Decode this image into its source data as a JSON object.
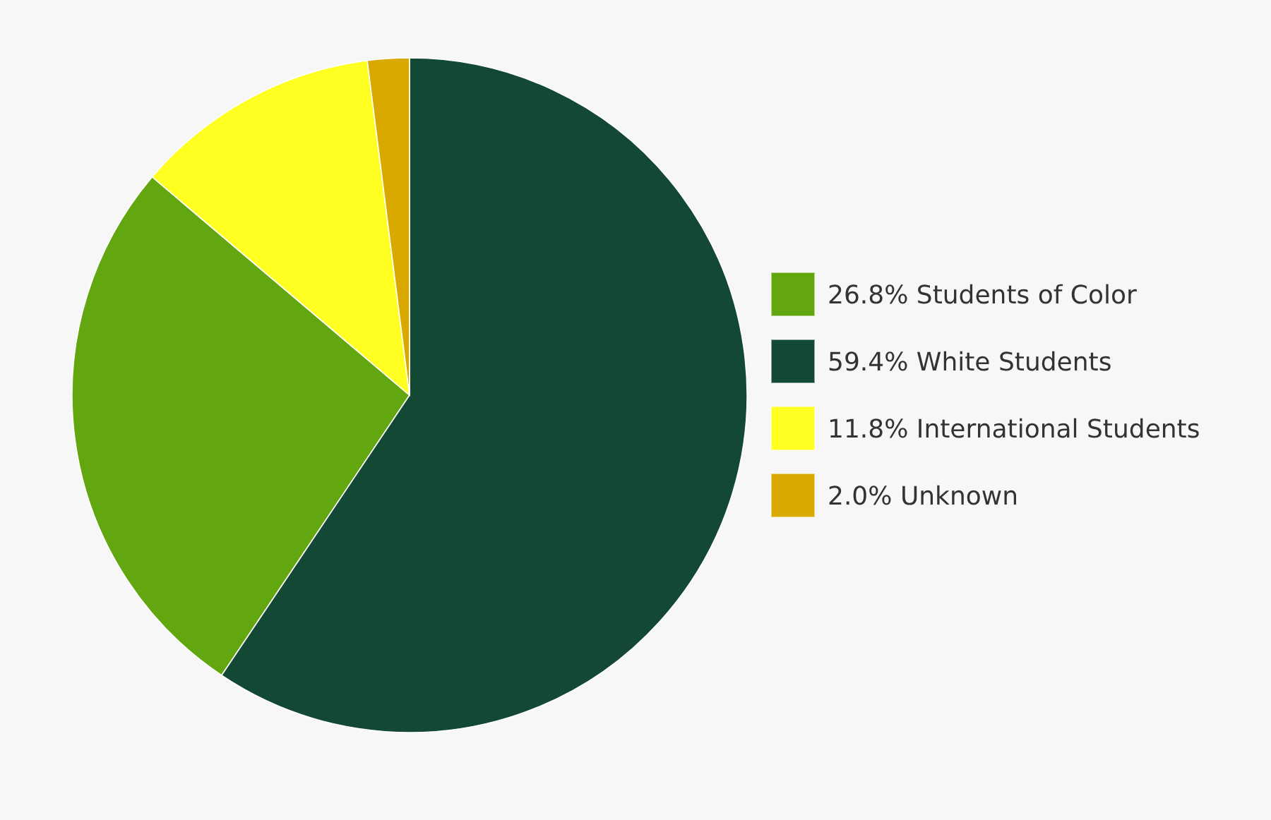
{
  "chart_data": {
    "type": "pie",
    "categories": [
      "Students of Color",
      "White Students",
      "International Students",
      "Unknown"
    ],
    "values": [
      26.8,
      59.4,
      11.8,
      2.0
    ],
    "value_labels": [
      "26.8%",
      "59.4%",
      "11.8%",
      "2.0%"
    ],
    "colors": [
      "#62a70f",
      "#124834",
      "#ffff22",
      "#daa900"
    ],
    "legend": "right"
  }
}
